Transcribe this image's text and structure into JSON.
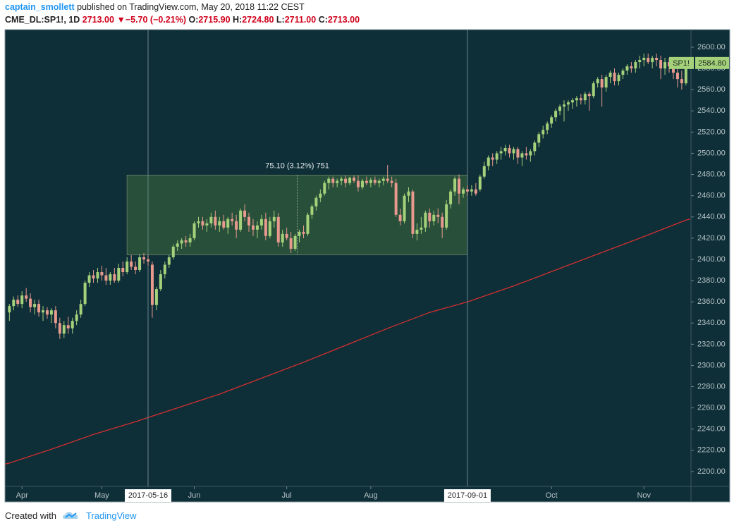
{
  "header": {
    "author": "captain_smollett",
    "published": "published on TradingView.com, May 20, 2018 11:22 CEST",
    "quote": {
      "symbol": "CME_DL:SP1!, 1D",
      "last": "2713.00",
      "arrow": "▼",
      "change": "−5.70 (−0.21%)",
      "ohlc": [
        {
          "label": "O:",
          "value": "2715.90"
        },
        {
          "label": "H:",
          "value": "2724.80"
        },
        {
          "label": "L:",
          "value": "2711.00"
        },
        {
          "label": "C:",
          "value": "2713.00"
        }
      ]
    }
  },
  "chart_data": {
    "type": "candlestick",
    "up_color": "#a5d17a",
    "down_color": "#e99a8f",
    "xlim": [
      -1.06,
      162.2
    ],
    "ylim": [
      2186,
      2616.6
    ],
    "grid": false,
    "xticks": [
      {
        "value": 3,
        "label": "Apr"
      },
      {
        "value": 22,
        "label": "May"
      },
      {
        "value": 44,
        "label": "Jun"
      },
      {
        "value": 66,
        "label": "Jul"
      },
      {
        "value": 86,
        "label": "Aug"
      },
      {
        "value": 129,
        "label": "Oct"
      },
      {
        "value": 151,
        "label": "Nov"
      }
    ],
    "yticks": [
      {
        "value": 2200,
        "label": "2200.00"
      },
      {
        "value": 2220,
        "label": "2220.00"
      },
      {
        "value": 2240,
        "label": "2240.00"
      },
      {
        "value": 2260,
        "label": "2260.00"
      },
      {
        "value": 2280,
        "label": "2280.00"
      },
      {
        "value": 2300,
        "label": "2300.00"
      },
      {
        "value": 2320,
        "label": "2320.00"
      },
      {
        "value": 2340,
        "label": "2340.00"
      },
      {
        "value": 2360,
        "label": "2360.00"
      },
      {
        "value": 2380,
        "label": "2380.00"
      },
      {
        "value": 2400,
        "label": "2400.00"
      },
      {
        "value": 2420,
        "label": "2420.00"
      },
      {
        "value": 2440,
        "label": "2440.00"
      },
      {
        "value": 2460,
        "label": "2460.00"
      },
      {
        "value": 2480,
        "label": "2480.00"
      },
      {
        "value": 2500,
        "label": "2500.00"
      },
      {
        "value": 2520,
        "label": "2520.00"
      },
      {
        "value": 2540,
        "label": "2540.00"
      },
      {
        "value": 2560,
        "label": "2560.00"
      },
      {
        "value": 2580,
        "label": "2580.00"
      },
      {
        "value": 2600,
        "label": "2600.00"
      }
    ],
    "open": [
      2350,
      2356,
      2362,
      2358,
      2366,
      2363,
      2355,
      2358,
      2350,
      2352,
      2348,
      2352,
      2340,
      2330,
      2338,
      2335,
      2342,
      2348,
      2358,
      2378,
      2385,
      2382,
      2388,
      2385,
      2380,
      2386,
      2380,
      2392,
      2388,
      2398,
      2393,
      2390,
      2402,
      2400,
      2395,
      2357,
      2372,
      2386,
      2395,
      2402,
      2412,
      2415,
      2418,
      2416,
      2420,
      2434,
      2436,
      2432,
      2434,
      2440,
      2432,
      2436,
      2430,
      2438,
      2436,
      2428,
      2446,
      2440,
      2432,
      2428,
      2432,
      2438,
      2422,
      2436,
      2440,
      2416,
      2424,
      2420,
      2410,
      2422,
      2426,
      2424,
      2442,
      2450,
      2458,
      2462,
      2472,
      2476,
      2472,
      2474,
      2476,
      2472,
      2477,
      2474,
      2468,
      2474,
      2472,
      2475,
      2472,
      2474,
      2476,
      2474,
      2472,
      2442,
      2436,
      2460,
      2464,
      2424,
      2428,
      2430,
      2444,
      2436,
      2442,
      2440,
      2430,
      2452,
      2464,
      2476,
      2462,
      2466,
      2464,
      2466,
      2466,
      2478,
      2488,
      2496,
      2494,
      2500,
      2502,
      2505,
      2500,
      2504,
      2496,
      2500,
      2498,
      2502,
      2510,
      2518,
      2522,
      2528,
      2534,
      2540,
      2544,
      2546,
      2548,
      2550,
      2552,
      2550,
      2556,
      2554,
      2566,
      2570,
      2562,
      2572,
      2576,
      2568,
      2574,
      2578,
      2582,
      2580,
      2586,
      2588,
      2590,
      2586,
      2590,
      2588,
      2580,
      2586,
      2582,
      2576,
      2570,
      2566
    ],
    "high": [
      2358,
      2365,
      2366,
      2370,
      2373,
      2368,
      2362,
      2362,
      2356,
      2355,
      2354,
      2356,
      2345,
      2342,
      2346,
      2345,
      2352,
      2362,
      2380,
      2388,
      2390,
      2392,
      2394,
      2392,
      2388,
      2392,
      2396,
      2398,
      2402,
      2404,
      2398,
      2405,
      2406,
      2404,
      2398,
      2374,
      2390,
      2398,
      2404,
      2414,
      2418,
      2420,
      2422,
      2424,
      2436,
      2440,
      2440,
      2438,
      2444,
      2446,
      2440,
      2442,
      2440,
      2444,
      2442,
      2448,
      2452,
      2444,
      2438,
      2436,
      2442,
      2444,
      2440,
      2446,
      2444,
      2428,
      2430,
      2426,
      2424,
      2428,
      2432,
      2444,
      2452,
      2460,
      2466,
      2474,
      2478,
      2478,
      2476,
      2478,
      2479,
      2478,
      2479,
      2479,
      2476,
      2478,
      2477,
      2478,
      2476,
      2478,
      2489,
      2478,
      2476,
      2448,
      2462,
      2468,
      2466,
      2434,
      2440,
      2446,
      2448,
      2446,
      2448,
      2444,
      2456,
      2466,
      2478,
      2480,
      2468,
      2470,
      2470,
      2472,
      2480,
      2492,
      2498,
      2500,
      2502,
      2506,
      2508,
      2508,
      2506,
      2506,
      2502,
      2506,
      2504,
      2512,
      2520,
      2526,
      2530,
      2536,
      2542,
      2546,
      2550,
      2550,
      2552,
      2554,
      2556,
      2558,
      2558,
      2568,
      2572,
      2574,
      2574,
      2578,
      2580,
      2576,
      2580,
      2584,
      2586,
      2588,
      2592,
      2594,
      2594,
      2592,
      2594,
      2592,
      2590,
      2590,
      2588,
      2580,
      2578,
      2588
    ],
    "low": [
      2342,
      2352,
      2355,
      2354,
      2360,
      2350,
      2348,
      2346,
      2342,
      2344,
      2340,
      2335,
      2325,
      2326,
      2330,
      2330,
      2338,
      2345,
      2356,
      2374,
      2378,
      2378,
      2380,
      2376,
      2376,
      2378,
      2378,
      2384,
      2386,
      2390,
      2386,
      2388,
      2396,
      2394,
      2345,
      2352,
      2370,
      2382,
      2392,
      2400,
      2408,
      2410,
      2412,
      2412,
      2418,
      2430,
      2428,
      2426,
      2430,
      2428,
      2426,
      2428,
      2424,
      2432,
      2420,
      2426,
      2436,
      2426,
      2422,
      2420,
      2428,
      2418,
      2420,
      2430,
      2412,
      2412,
      2418,
      2406,
      2408,
      2416,
      2420,
      2422,
      2438,
      2446,
      2454,
      2460,
      2466,
      2468,
      2468,
      2470,
      2468,
      2470,
      2472,
      2464,
      2466,
      2470,
      2468,
      2470,
      2468,
      2470,
      2472,
      2468,
      2440,
      2432,
      2434,
      2454,
      2420,
      2418,
      2424,
      2426,
      2430,
      2432,
      2434,
      2420,
      2428,
      2448,
      2460,
      2452,
      2458,
      2460,
      2460,
      2460,
      2464,
      2476,
      2484,
      2488,
      2490,
      2494,
      2498,
      2496,
      2494,
      2490,
      2488,
      2494,
      2492,
      2498,
      2506,
      2514,
      2518,
      2524,
      2530,
      2536,
      2530,
      2540,
      2542,
      2544,
      2546,
      2546,
      2540,
      2552,
      2562,
      2544,
      2558,
      2566,
      2564,
      2564,
      2570,
      2574,
      2576,
      2576,
      2580,
      2582,
      2584,
      2580,
      2582,
      2570,
      2574,
      2576,
      2570,
      2562,
      2560,
      2564
    ],
    "close": [
      2356,
      2362,
      2358,
      2366,
      2363,
      2355,
      2358,
      2350,
      2352,
      2348,
      2352,
      2340,
      2330,
      2338,
      2335,
      2342,
      2348,
      2358,
      2378,
      2385,
      2382,
      2388,
      2385,
      2380,
      2386,
      2380,
      2392,
      2388,
      2398,
      2393,
      2390,
      2402,
      2400,
      2398,
      2357,
      2372,
      2386,
      2395,
      2402,
      2412,
      2415,
      2418,
      2416,
      2420,
      2434,
      2436,
      2432,
      2434,
      2440,
      2432,
      2436,
      2430,
      2438,
      2436,
      2428,
      2446,
      2440,
      2432,
      2428,
      2432,
      2438,
      2422,
      2436,
      2440,
      2416,
      2424,
      2420,
      2410,
      2422,
      2426,
      2424,
      2442,
      2450,
      2458,
      2462,
      2472,
      2476,
      2472,
      2474,
      2476,
      2472,
      2477,
      2474,
      2468,
      2474,
      2472,
      2475,
      2472,
      2474,
      2476,
      2474,
      2472,
      2442,
      2436,
      2460,
      2464,
      2424,
      2428,
      2430,
      2444,
      2436,
      2442,
      2440,
      2430,
      2452,
      2464,
      2476,
      2462,
      2466,
      2464,
      2466,
      2462,
      2478,
      2488,
      2496,
      2494,
      2500,
      2502,
      2505,
      2500,
      2504,
      2496,
      2500,
      2498,
      2502,
      2510,
      2518,
      2522,
      2528,
      2534,
      2540,
      2544,
      2546,
      2548,
      2550,
      2552,
      2550,
      2556,
      2554,
      2566,
      2570,
      2562,
      2572,
      2576,
      2568,
      2574,
      2578,
      2582,
      2580,
      2586,
      2588,
      2590,
      2586,
      2590,
      2588,
      2580,
      2586,
      2582,
      2576,
      2570,
      2566,
      2584.8
    ],
    "ma": {
      "color": "#d32f2f",
      "x": [
        -1,
        0,
        10,
        20,
        30,
        33,
        40,
        50,
        60,
        70,
        80,
        90,
        100,
        109,
        120,
        130,
        140,
        150,
        161,
        162
      ],
      "values": [
        2207,
        2208,
        2221,
        2235,
        2247,
        2251,
        2260,
        2273,
        2288,
        2303,
        2319,
        2335,
        2350,
        2360,
        2375,
        2390,
        2405,
        2420,
        2437,
        2438
      ]
    },
    "range_box": {
      "x": [
        28,
        109
      ],
      "y": [
        2404.3,
        2479.4
      ],
      "label": "75.10 (3.12%) 751"
    },
    "markers": [
      {
        "x": 33,
        "label": "2017-05-16"
      },
      {
        "x": 109,
        "label": "2017-09-01"
      }
    ],
    "last_price": {
      "symbol": "SP1!",
      "value": 2584.8,
      "label": "2584.80"
    }
  },
  "footer": {
    "text": "Created with",
    "brand": "TradingView"
  }
}
